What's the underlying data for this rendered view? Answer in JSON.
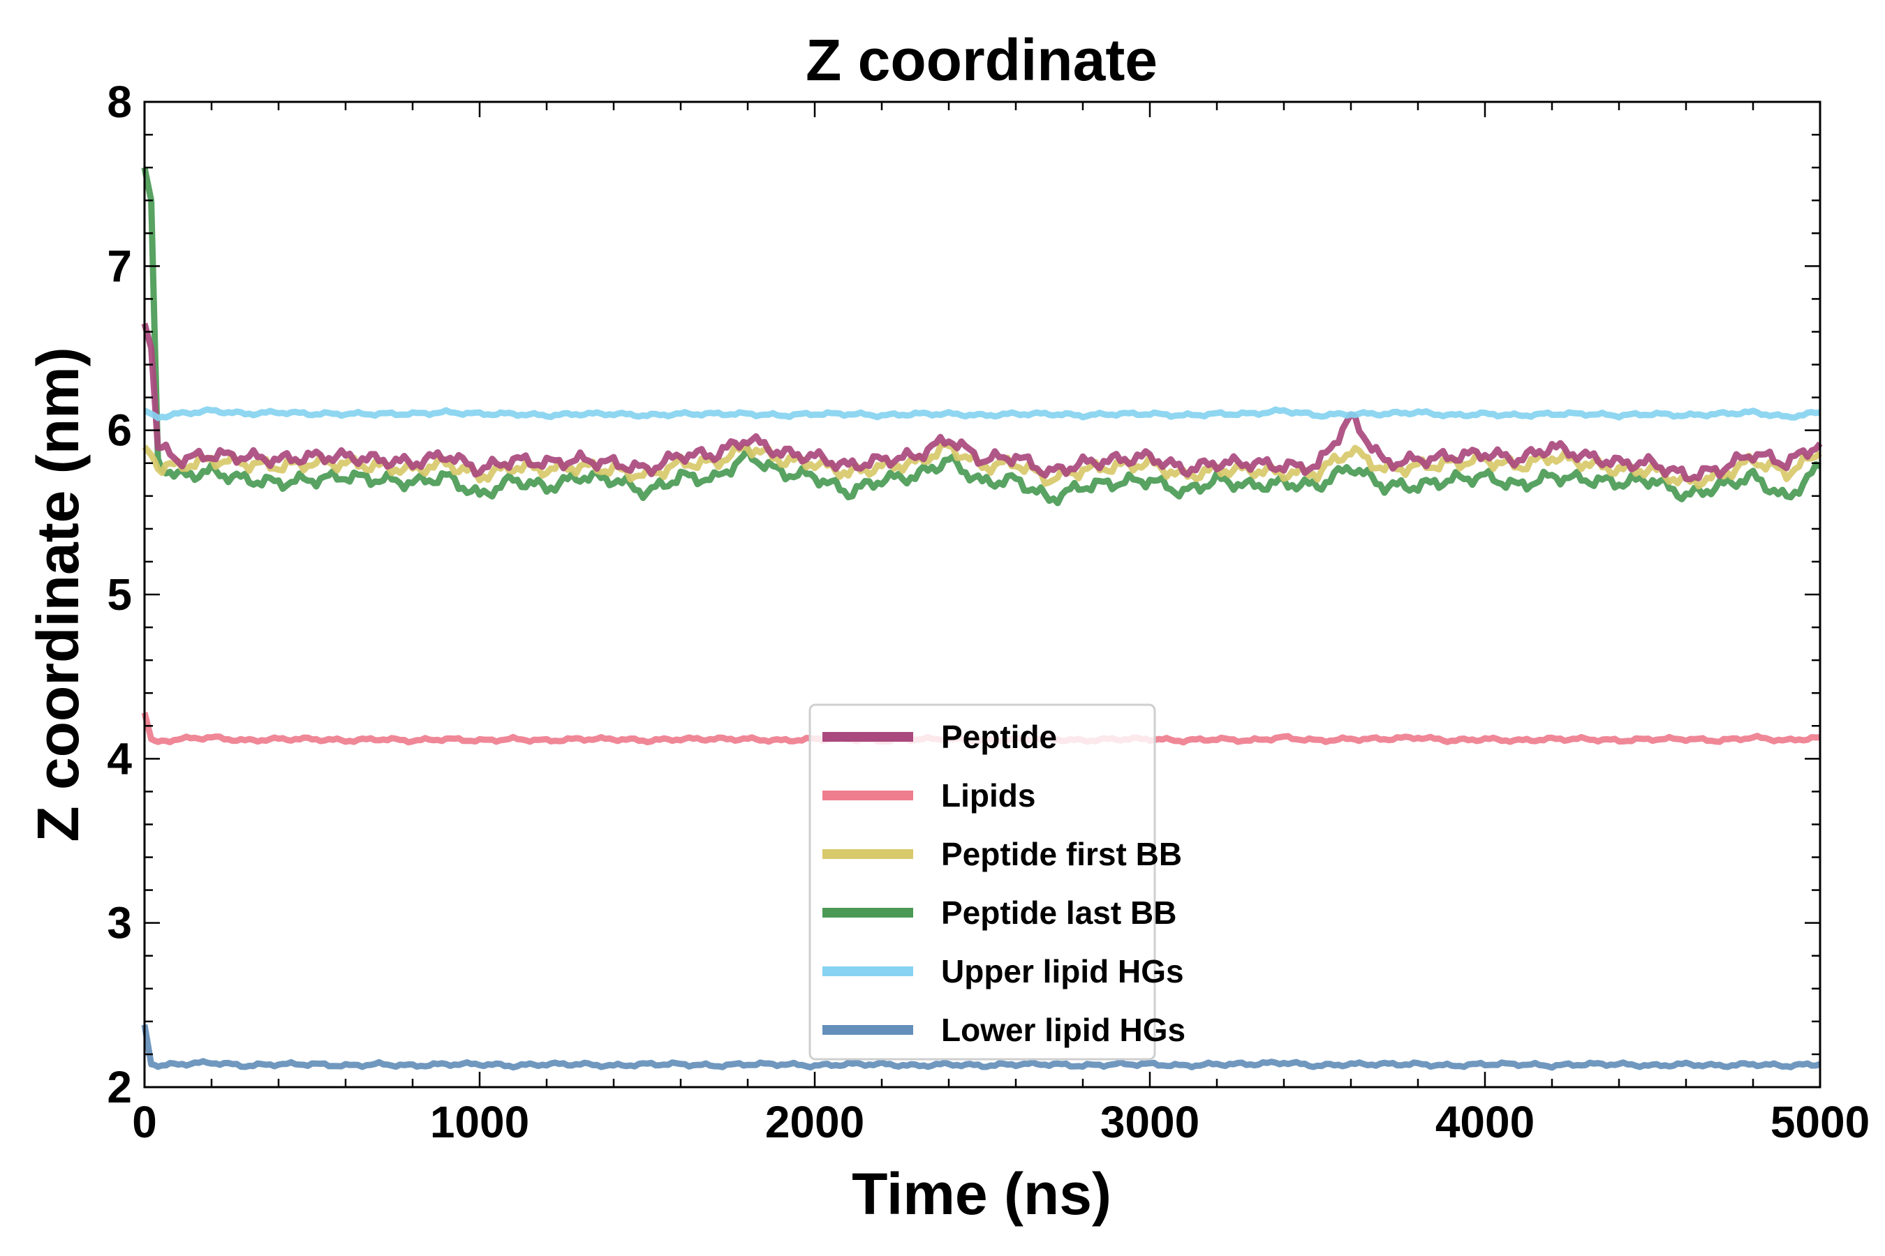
{
  "chart_data": {
    "type": "line",
    "title": "Z coordinate",
    "xlabel": "Time (ns)",
    "ylabel": "Z coordinate (nm)",
    "xlim": [
      0,
      5000
    ],
    "ylim": [
      2,
      8
    ],
    "xticks": [
      0,
      1000,
      2000,
      3000,
      4000,
      5000
    ],
    "yticks": [
      2,
      3,
      4,
      5,
      6,
      7,
      8
    ],
    "xtick_labels": [
      "0",
      "1000",
      "2000",
      "3000",
      "4000",
      "5000"
    ],
    "ytick_labels": [
      "2",
      "3",
      "4",
      "5",
      "6",
      "7",
      "8"
    ],
    "grid": false,
    "legend_position": "lower-center",
    "x": [
      0,
      20,
      40,
      100,
      200,
      300,
      400,
      500,
      600,
      700,
      800,
      900,
      1000,
      1100,
      1200,
      1300,
      1400,
      1500,
      1600,
      1700,
      1800,
      1900,
      2000,
      2100,
      2200,
      2300,
      2400,
      2500,
      2600,
      2700,
      2800,
      2900,
      3000,
      3100,
      3200,
      3300,
      3400,
      3500,
      3600,
      3700,
      3800,
      3900,
      4000,
      4100,
      4200,
      4300,
      4400,
      4500,
      4600,
      4700,
      4800,
      4900,
      5000
    ],
    "series": [
      {
        "name": "Peptide last BB",
        "color": "#4a9a55",
        "values": [
          7.6,
          7.4,
          5.8,
          5.72,
          5.75,
          5.7,
          5.68,
          5.7,
          5.72,
          5.7,
          5.68,
          5.72,
          5.6,
          5.7,
          5.65,
          5.72,
          5.7,
          5.62,
          5.72,
          5.7,
          5.85,
          5.74,
          5.72,
          5.62,
          5.7,
          5.72,
          5.82,
          5.68,
          5.7,
          5.58,
          5.66,
          5.68,
          5.7,
          5.62,
          5.7,
          5.66,
          5.68,
          5.66,
          5.78,
          5.66,
          5.66,
          5.7,
          5.72,
          5.66,
          5.72,
          5.7,
          5.68,
          5.7,
          5.6,
          5.66,
          5.72,
          5.58,
          5.78
        ]
      },
      {
        "name": "Peptide first BB",
        "color": "#d8c96a",
        "values": [
          5.9,
          5.85,
          5.78,
          5.78,
          5.82,
          5.8,
          5.78,
          5.8,
          5.8,
          5.78,
          5.76,
          5.8,
          5.72,
          5.78,
          5.76,
          5.78,
          5.76,
          5.72,
          5.8,
          5.8,
          5.9,
          5.82,
          5.8,
          5.74,
          5.78,
          5.8,
          5.9,
          5.78,
          5.8,
          5.7,
          5.76,
          5.78,
          5.8,
          5.72,
          5.76,
          5.76,
          5.74,
          5.74,
          5.88,
          5.76,
          5.78,
          5.8,
          5.82,
          5.78,
          5.84,
          5.8,
          5.76,
          5.76,
          5.68,
          5.72,
          5.82,
          5.74,
          5.86
        ]
      },
      {
        "name": "Peptide",
        "color": "#a9497e",
        "values": [
          6.65,
          6.5,
          5.9,
          5.82,
          5.85,
          5.84,
          5.82,
          5.84,
          5.84,
          5.82,
          5.8,
          5.85,
          5.76,
          5.82,
          5.8,
          5.82,
          5.8,
          5.76,
          5.85,
          5.85,
          5.95,
          5.86,
          5.84,
          5.78,
          5.82,
          5.84,
          5.95,
          5.82,
          5.84,
          5.74,
          5.8,
          5.82,
          5.84,
          5.76,
          5.8,
          5.8,
          5.78,
          5.78,
          6.08,
          5.8,
          5.82,
          5.84,
          5.86,
          5.82,
          5.9,
          5.84,
          5.8,
          5.8,
          5.72,
          5.76,
          5.86,
          5.8,
          5.92
        ]
      },
      {
        "name": "Lipids",
        "color": "#ee7d8e",
        "values": [
          4.28,
          4.12,
          4.1,
          4.12,
          4.13,
          4.11,
          4.12,
          4.12,
          4.11,
          4.12,
          4.11,
          4.12,
          4.11,
          4.12,
          4.11,
          4.12,
          4.12,
          4.11,
          4.12,
          4.12,
          4.12,
          4.11,
          4.12,
          4.12,
          4.11,
          4.12,
          4.12,
          4.11,
          4.12,
          4.12,
          4.11,
          4.12,
          4.12,
          4.11,
          4.12,
          4.11,
          4.13,
          4.11,
          4.12,
          4.12,
          4.13,
          4.11,
          4.12,
          4.11,
          4.12,
          4.12,
          4.11,
          4.12,
          4.12,
          4.11,
          4.13,
          4.11,
          4.13
        ]
      },
      {
        "name": "Upper lipid HGs",
        "color": "#86d2f0",
        "values": [
          6.12,
          6.1,
          6.08,
          6.1,
          6.12,
          6.1,
          6.11,
          6.1,
          6.1,
          6.1,
          6.1,
          6.11,
          6.1,
          6.1,
          6.09,
          6.1,
          6.1,
          6.09,
          6.1,
          6.1,
          6.1,
          6.09,
          6.1,
          6.1,
          6.09,
          6.1,
          6.1,
          6.09,
          6.1,
          6.1,
          6.09,
          6.1,
          6.1,
          6.09,
          6.1,
          6.1,
          6.12,
          6.09,
          6.1,
          6.1,
          6.11,
          6.09,
          6.1,
          6.09,
          6.1,
          6.1,
          6.09,
          6.1,
          6.09,
          6.1,
          6.11,
          6.08,
          6.11
        ]
      },
      {
        "name": "Lower lipid HGs",
        "color": "#648fba",
        "values": [
          2.38,
          2.14,
          2.13,
          2.14,
          2.15,
          2.13,
          2.14,
          2.14,
          2.13,
          2.14,
          2.13,
          2.14,
          2.14,
          2.13,
          2.14,
          2.14,
          2.13,
          2.14,
          2.14,
          2.13,
          2.14,
          2.14,
          2.13,
          2.14,
          2.14,
          2.13,
          2.14,
          2.13,
          2.14,
          2.14,
          2.13,
          2.14,
          2.14,
          2.13,
          2.14,
          2.14,
          2.15,
          2.13,
          2.14,
          2.14,
          2.14,
          2.13,
          2.14,
          2.14,
          2.13,
          2.14,
          2.14,
          2.13,
          2.14,
          2.13,
          2.14,
          2.13,
          2.14
        ]
      }
    ],
    "legend_order": [
      "Peptide",
      "Lipids",
      "Peptide first BB",
      "Peptide last BB",
      "Upper lipid HGs",
      "Lower lipid HGs"
    ]
  }
}
